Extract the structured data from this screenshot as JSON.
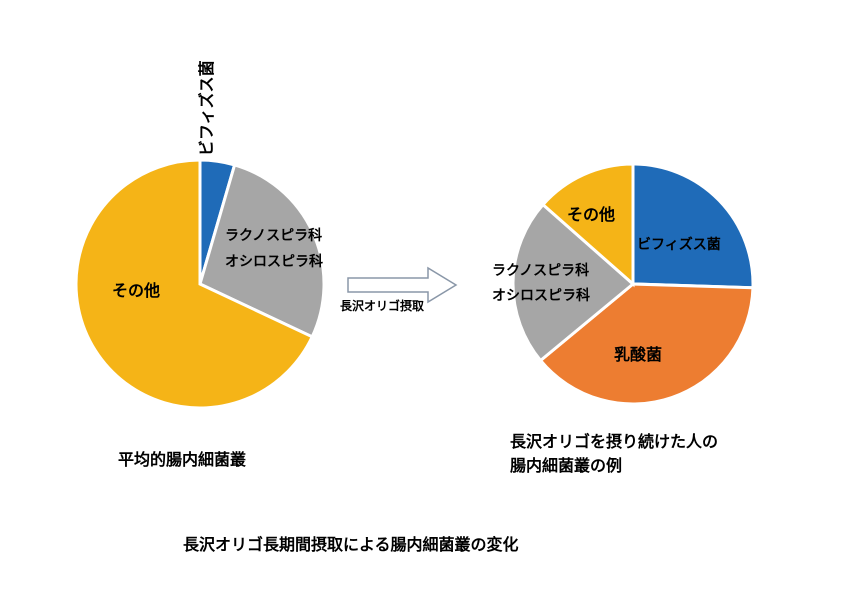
{
  "chart_data": [
    {
      "type": "pie",
      "title": "平均的腸内細菌叢",
      "colors": [
        "#1f6bb8",
        "#a6a6a6",
        "#f5b417"
      ],
      "slices": [
        {
          "label": "ビフィズス菌",
          "value": 4.5
        },
        {
          "label": "ラクノスピラ科 オシロスピラ科",
          "value": 27.5
        },
        {
          "label": "その他",
          "value": 68
        }
      ]
    },
    {
      "type": "pie",
      "title_lines": [
        "長沢オリゴを摂り続けた人の",
        "腸内細菌叢の例"
      ],
      "colors": [
        "#1f6bb8",
        "#ed7d31",
        "#a6a6a6",
        "#f5b417"
      ],
      "slices": [
        {
          "label": "ビフィズス菌",
          "value": 25.5
        },
        {
          "label": "乳酸菌",
          "value": 38.5
        },
        {
          "label": "ラクノスピラ科 オシロスピラ科",
          "value": 22.5
        },
        {
          "label": "その他",
          "value": 13.5
        }
      ]
    }
  ],
  "labels": {
    "bifidus": "ビフィズス菌",
    "lachno_line1": "ラクノスピラ科",
    "lachno_line2": "オシロスピラ科",
    "other": "その他",
    "lactic": "乳酸菌"
  },
  "arrow_label": "長沢オリゴ摂取",
  "captions": {
    "left": "平均的腸内細菌叢",
    "right_line1": "長沢オリゴを摂り続けた人の",
    "right_line2": "腸内細菌叢の例",
    "bottom": "長沢オリゴ長期間摂取による腸内細菌叢の変化"
  }
}
